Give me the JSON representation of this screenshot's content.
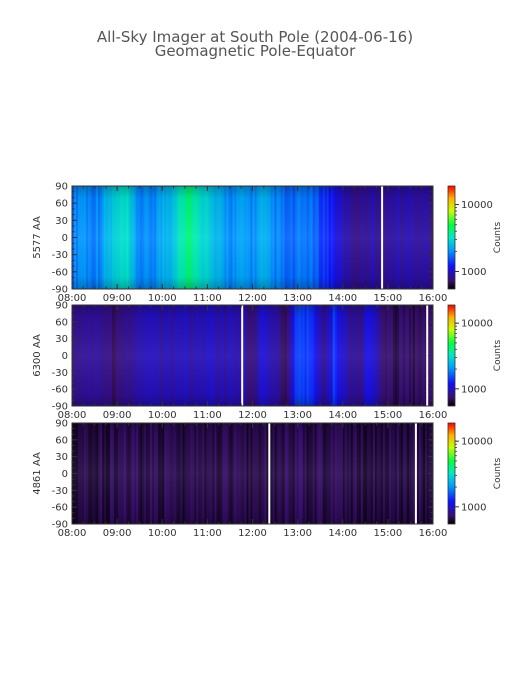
{
  "chart_data": {
    "type": "heatmap",
    "title": "All-Sky Imager at South Pole (2004-06-16)",
    "subtitle": "Geomagnetic Pole-Equator",
    "xticks": [
      "08:00",
      "09:00",
      "10:00",
      "11:00",
      "12:00",
      "13:00",
      "14:00",
      "15:00",
      "16:00"
    ],
    "xlim_hours": [
      8,
      16
    ],
    "yticks": [
      90,
      60,
      30,
      0,
      -30,
      -60,
      -90
    ],
    "ylim": [
      -90,
      90
    ],
    "colorbar": {
      "label": "Counts",
      "ticks": [
        "10000",
        "1000"
      ],
      "scale": "log"
    },
    "panels": [
      {
        "ylabel": "5577 AA",
        "intensity_profile": [
          [
            8.0,
            0.33
          ],
          [
            8.2,
            0.38
          ],
          [
            8.4,
            0.35
          ],
          [
            8.6,
            0.36
          ],
          [
            8.8,
            0.42
          ],
          [
            9.0,
            0.46
          ],
          [
            9.2,
            0.48
          ],
          [
            9.4,
            0.38
          ],
          [
            9.6,
            0.34
          ],
          [
            9.8,
            0.36
          ],
          [
            10.0,
            0.4
          ],
          [
            10.2,
            0.44
          ],
          [
            10.4,
            0.52
          ],
          [
            10.6,
            0.56
          ],
          [
            10.8,
            0.52
          ],
          [
            11.0,
            0.46
          ],
          [
            11.2,
            0.4
          ],
          [
            11.4,
            0.38
          ],
          [
            11.6,
            0.36
          ],
          [
            11.8,
            0.38
          ],
          [
            12.0,
            0.36
          ],
          [
            12.2,
            0.4
          ],
          [
            12.4,
            0.36
          ],
          [
            12.6,
            0.34
          ],
          [
            12.8,
            0.3
          ],
          [
            13.0,
            0.32
          ],
          [
            13.2,
            0.34
          ],
          [
            13.4,
            0.3
          ],
          [
            13.6,
            0.26
          ],
          [
            13.8,
            0.22
          ],
          [
            14.0,
            0.14
          ],
          [
            14.2,
            0.12
          ],
          [
            14.4,
            0.12
          ],
          [
            14.6,
            0.14
          ],
          [
            14.8,
            0.13
          ],
          [
            15.0,
            0.12
          ],
          [
            15.2,
            0.14
          ],
          [
            15.4,
            0.13
          ],
          [
            15.6,
            0.15
          ],
          [
            15.8,
            0.13
          ],
          [
            16.0,
            0.12
          ]
        ],
        "gaps_hours": [
          14.85
        ]
      },
      {
        "ylabel": "6300 AA",
        "intensity_profile": [
          [
            8.0,
            0.09
          ],
          [
            8.4,
            0.12
          ],
          [
            8.8,
            0.09
          ],
          [
            9.0,
            0.08
          ],
          [
            9.4,
            0.14
          ],
          [
            9.8,
            0.15
          ],
          [
            10.2,
            0.14
          ],
          [
            10.6,
            0.16
          ],
          [
            11.0,
            0.15
          ],
          [
            11.4,
            0.14
          ],
          [
            11.8,
            0.13
          ],
          [
            12.0,
            0.1
          ],
          [
            12.2,
            0.2
          ],
          [
            12.4,
            0.14
          ],
          [
            12.8,
            0.08
          ],
          [
            13.0,
            0.3
          ],
          [
            13.3,
            0.24
          ],
          [
            13.6,
            0.1
          ],
          [
            13.8,
            0.26
          ],
          [
            14.0,
            0.18
          ],
          [
            14.3,
            0.1
          ],
          [
            14.6,
            0.2
          ],
          [
            14.9,
            0.08
          ],
          [
            15.2,
            0.07
          ],
          [
            15.6,
            0.07
          ],
          [
            16.0,
            0.06
          ]
        ],
        "gaps_hours": [
          11.75,
          15.85
        ]
      },
      {
        "ylabel": "4861 AA",
        "intensity_profile": [
          [
            8.0,
            0.04
          ],
          [
            8.8,
            0.05
          ],
          [
            9.2,
            0.06
          ],
          [
            10.0,
            0.05
          ],
          [
            11.0,
            0.05
          ],
          [
            12.0,
            0.05
          ],
          [
            13.0,
            0.06
          ],
          [
            14.0,
            0.05
          ],
          [
            15.0,
            0.05
          ],
          [
            16.0,
            0.04
          ]
        ],
        "gaps_hours": [
          12.35,
          15.6
        ]
      }
    ]
  }
}
